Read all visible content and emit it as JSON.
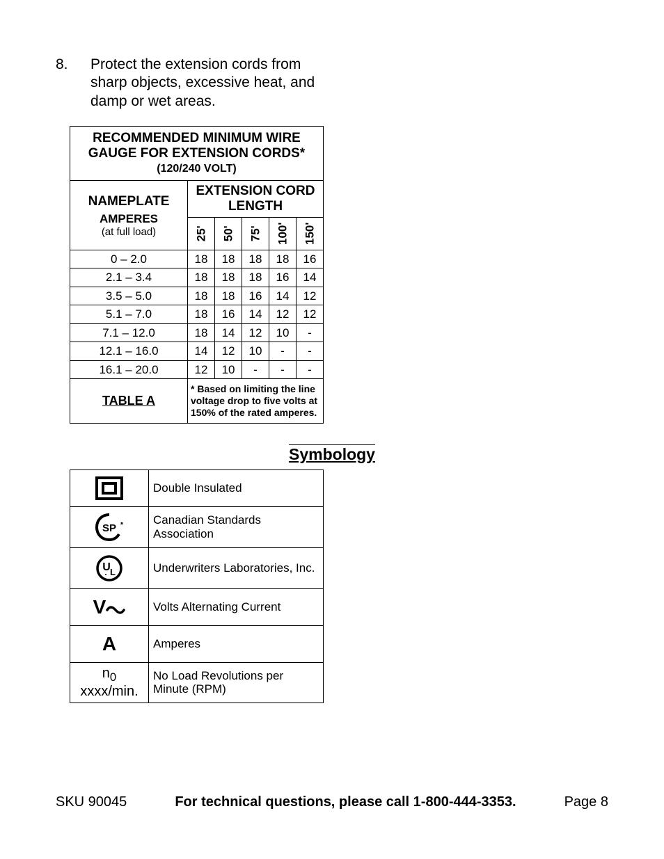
{
  "instruction": {
    "number": "8.",
    "text": "Protect the extension cords from sharp objects, excessive heat, and damp or wet areas."
  },
  "wire_table": {
    "title_main": "RECOMMENDED MINIMUM WIRE GAUGE FOR EXTENSION CORDS*",
    "title_sub": "(120/240 VOLT)",
    "nameplate_label": "NAMEPLATE",
    "amperes_label": "AMPERES",
    "fullload_label": "(at full load)",
    "ext_header": "EXTENSION CORD LENGTH",
    "lengths": [
      "25'",
      "50'",
      "75'",
      "100'",
      "150'"
    ],
    "rows": [
      {
        "amp": "0 – 2.0",
        "vals": [
          "18",
          "18",
          "18",
          "18",
          "16"
        ]
      },
      {
        "amp": "2.1 – 3.4",
        "vals": [
          "18",
          "18",
          "18",
          "16",
          "14"
        ]
      },
      {
        "amp": "3.5 – 5.0",
        "vals": [
          "18",
          "18",
          "16",
          "14",
          "12"
        ]
      },
      {
        "amp": "5.1 – 7.0",
        "vals": [
          "18",
          "16",
          "14",
          "12",
          "12"
        ]
      },
      {
        "amp": "7.1 – 12.0",
        "vals": [
          "18",
          "14",
          "12",
          "10",
          "-"
        ]
      },
      {
        "amp": "12.1 – 16.0",
        "vals": [
          "14",
          "12",
          "10",
          "-",
          "-"
        ]
      },
      {
        "amp": "16.1 – 20.0",
        "vals": [
          "12",
          "10",
          "-",
          "-",
          "-"
        ]
      }
    ],
    "footer_label": "TABLE A",
    "footer_note": "* Based on limiting the line voltage drop to five volts at 150% of the rated amperes."
  },
  "symbology": {
    "heading": "Symbology",
    "rows": [
      {
        "icon": "double-insulated",
        "label": "Double Insulated"
      },
      {
        "icon": "csa",
        "label": "Canadian Standards Association"
      },
      {
        "icon": "ul",
        "label": "Underwriters Laboratories, Inc."
      },
      {
        "icon": "vac",
        "label": "Volts Alternating Current"
      },
      {
        "icon": "amperes",
        "label": "Amperes"
      },
      {
        "icon": "rpm",
        "label": "No Load Revolutions per Minute (RPM)"
      }
    ],
    "vac_text": "V",
    "amp_text": "A",
    "rpm_text": "n<sub>0</sub> xxxx/min."
  },
  "footer": {
    "sku": "SKU 90045",
    "tech": "For technical questions, please call 1-800-444-3353.",
    "page": "Page 8"
  }
}
